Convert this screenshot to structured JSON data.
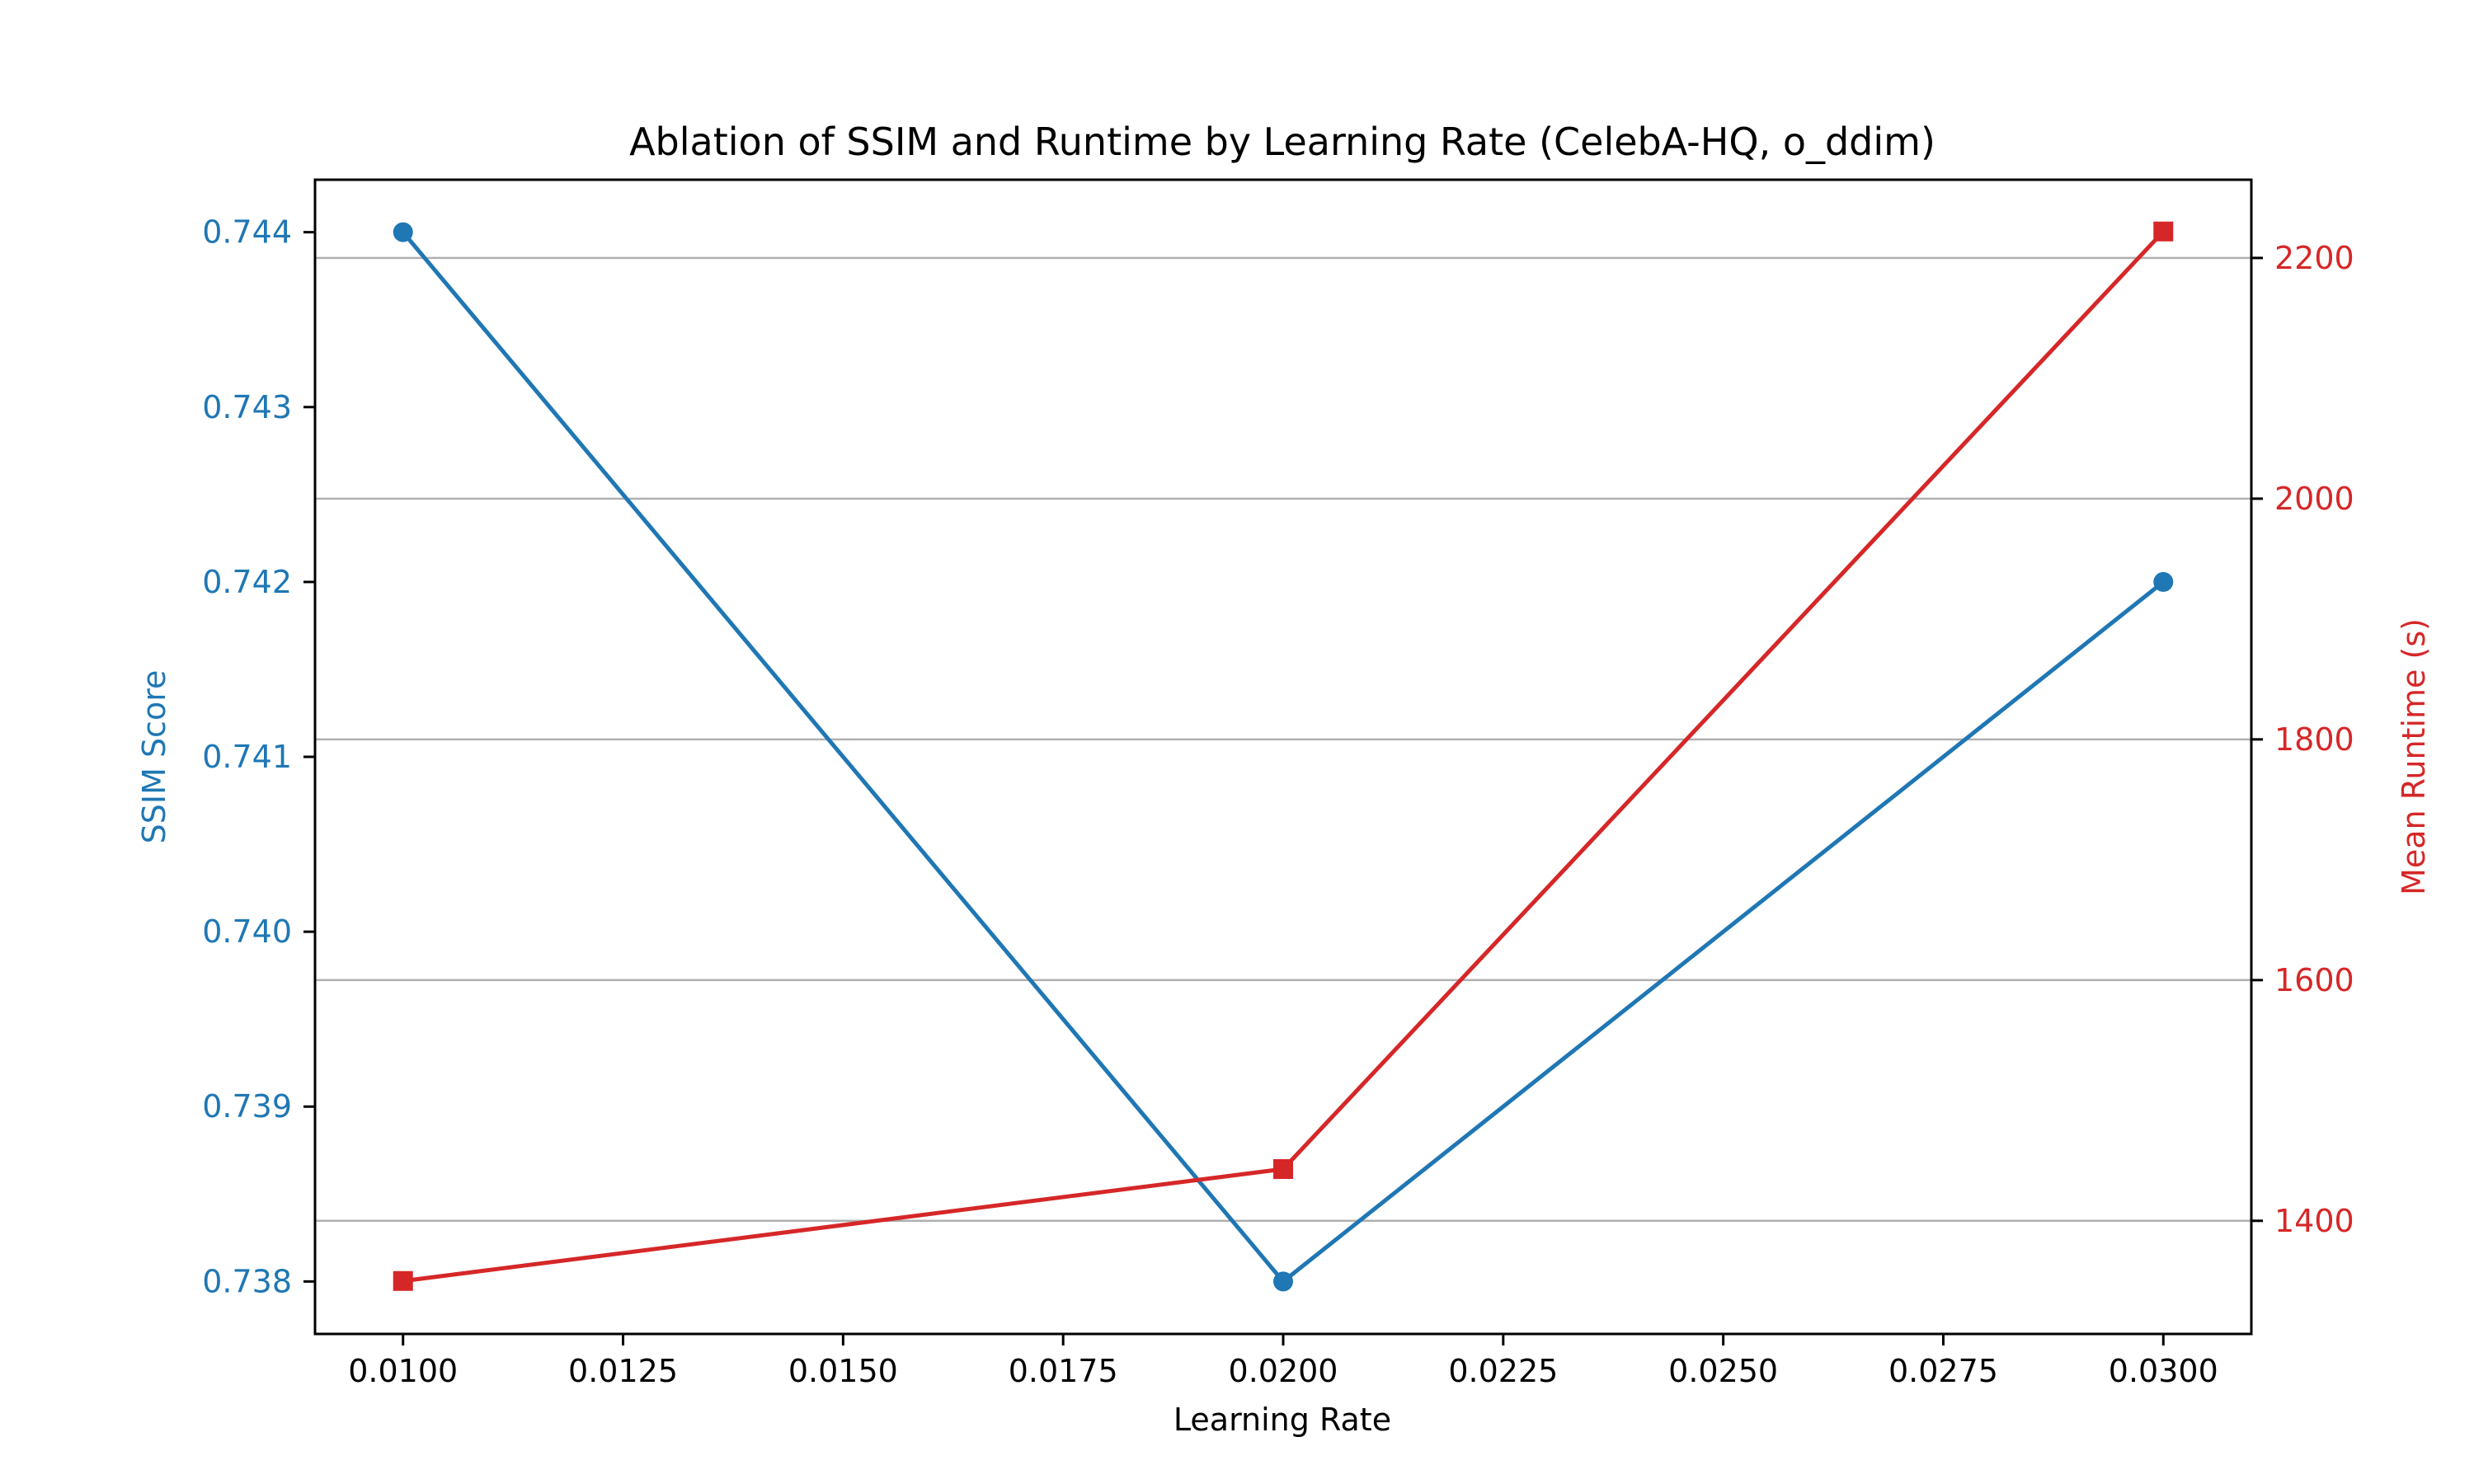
{
  "chart_data": {
    "type": "line",
    "title": "Ablation of SSIM and Runtime by Learning Rate (CelebA-HQ, o_ddim)",
    "xlabel": "Learning Rate",
    "ylabel_left": "SSIM Score",
    "ylabel_right": "Mean Runtime (s)",
    "x": [
      0.01,
      0.02,
      0.03
    ],
    "xlim": [
      0.009,
      0.031
    ],
    "xticks": [
      "0.0100",
      "0.0125",
      "0.0150",
      "0.0175",
      "0.0200",
      "0.0225",
      "0.0250",
      "0.0275",
      "0.0300"
    ],
    "ylim_left": [
      0.7377,
      0.7443
    ],
    "yticks_left": [
      "0.738",
      "0.739",
      "0.740",
      "0.741",
      "0.742",
      "0.743",
      "0.744"
    ],
    "ylim_right": [
      1306,
      2265
    ],
    "yticks_right": [
      "1400",
      "1600",
      "1800",
      "2000",
      "2200"
    ],
    "grid": "horizontal, right axis",
    "colors": {
      "ssim": "#1f77b4",
      "runtime": "#d62728",
      "grid": "#b0b0b0",
      "axis": "#000000"
    },
    "series": [
      {
        "axis": "left",
        "marker": "circle",
        "values": [
          0.744,
          0.738,
          0.742
        ]
      },
      {
        "axis": "right",
        "marker": "square",
        "values": [
          1350,
          1443,
          2222
        ]
      }
    ]
  }
}
